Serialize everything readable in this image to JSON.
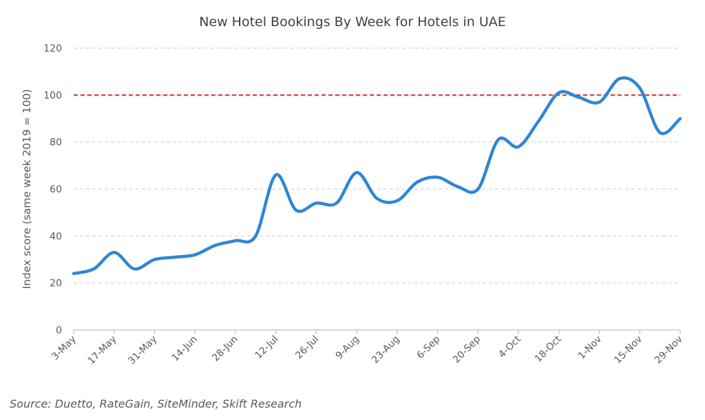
{
  "chart_data": {
    "type": "line",
    "title": "New Hotel Bookings By Week for Hotels in UAE",
    "ylabel": "Index score (same week 2019 = 100)",
    "xlabel": "",
    "ylim": [
      0,
      120
    ],
    "yticks": [
      0,
      20,
      40,
      60,
      80,
      100,
      120
    ],
    "grid": true,
    "legend": "none",
    "x_tick_labels": [
      "3-May",
      "17-May",
      "31-May",
      "14-Jun",
      "28-Jun",
      "12-Jul",
      "26-Jul",
      "9-Aug",
      "23-Aug",
      "6-Sep",
      "20-Sep",
      "4-Oct",
      "18-Oct",
      "1-Nov",
      "15-Nov",
      "29-Nov"
    ],
    "x": [
      "3-May",
      "10-May",
      "17-May",
      "24-May",
      "31-May",
      "7-Jun",
      "14-Jun",
      "21-Jun",
      "28-Jun",
      "5-Jul",
      "12-Jul",
      "19-Jul",
      "26-Jul",
      "2-Aug",
      "9-Aug",
      "16-Aug",
      "23-Aug",
      "30-Aug",
      "6-Sep",
      "13-Sep",
      "20-Sep",
      "27-Sep",
      "4-Oct",
      "11-Oct",
      "18-Oct",
      "25-Oct",
      "1-Nov",
      "8-Nov",
      "15-Nov",
      "22-Nov",
      "29-Nov"
    ],
    "series": [
      {
        "values": [
          24,
          26,
          33,
          26,
          30,
          31,
          32,
          36,
          38,
          40,
          66,
          51,
          54,
          54,
          67,
          56,
          55,
          63,
          65,
          61,
          60,
          81,
          78,
          89,
          101,
          99,
          97,
          107,
          103,
          84,
          90
        ],
        "color": "#2e86d6"
      }
    ],
    "reference_line": {
      "y": 100,
      "color": "#d62728",
      "style": "dashed"
    }
  },
  "source": "Source: Duetto, RateGain, SiteMinder, Skift Research"
}
